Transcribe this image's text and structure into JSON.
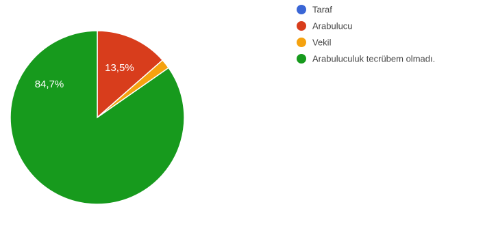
{
  "chart_data": {
    "type": "pie",
    "title": "",
    "legend_position": "right",
    "slices": [
      {
        "label": "Taraf",
        "value": 0,
        "color": "#3a66d6",
        "display": ""
      },
      {
        "label": "Arabulucu",
        "value": 13.5,
        "color": "#d83d1c",
        "display": "13,5%"
      },
      {
        "label": "Vekil",
        "value": 1.8,
        "color": "#f5a20f",
        "display": ""
      },
      {
        "label": "Arabuluculuk tecrübem olmadı.",
        "value": 84.7,
        "color": "#179a1d",
        "display": "84,7%"
      }
    ]
  }
}
